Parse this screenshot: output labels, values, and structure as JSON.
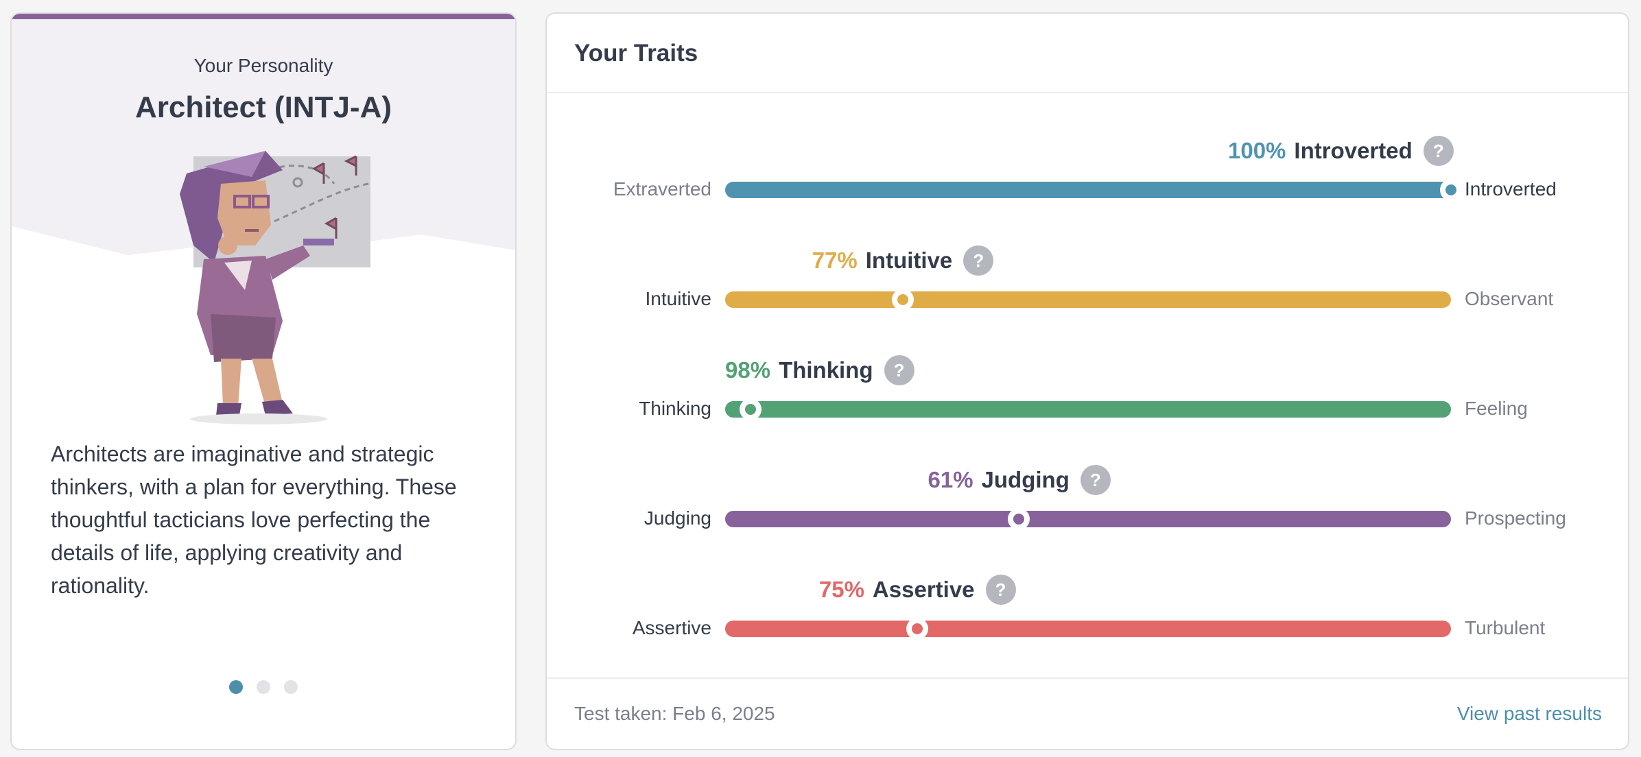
{
  "persona": {
    "eyebrow": "Your Personality",
    "title": "Architect (INTJ-A)",
    "description": "Architects are imaginative and strategic thinkers, with a plan for everything. These thoughtful tacticians love perfecting the details of life, applying creativity and rationality.",
    "illustration": "architect-character-illustration",
    "carousel": {
      "count": 3,
      "active_index": 0
    }
  },
  "traits": {
    "title": "Your Traits",
    "items": [
      {
        "pct": "100%",
        "name": "Introverted",
        "left": "Extraverted",
        "right": "Introverted",
        "position": 1.0,
        "dominant_side": "right",
        "color": "#4f93b1"
      },
      {
        "pct": "77%",
        "name": "Intuitive",
        "left": "Intuitive",
        "right": "Observant",
        "position": 0.245,
        "dominant_side": "left",
        "color": "#e0ac47"
      },
      {
        "pct": "98%",
        "name": "Thinking",
        "left": "Thinking",
        "right": "Feeling",
        "position": 0.035,
        "dominant_side": "left",
        "color": "#52a276"
      },
      {
        "pct": "61%",
        "name": "Judging",
        "left": "Judging",
        "right": "Prospecting",
        "position": 0.405,
        "dominant_side": "left",
        "color": "#87629b"
      },
      {
        "pct": "75%",
        "name": "Assertive",
        "left": "Assertive",
        "right": "Turbulent",
        "position": 0.265,
        "dominant_side": "left",
        "color": "#e36868"
      }
    ],
    "help_icon": "?"
  },
  "footer": {
    "test_date": "Test taken: Feb 6, 2025",
    "past_results": "View past results"
  }
}
